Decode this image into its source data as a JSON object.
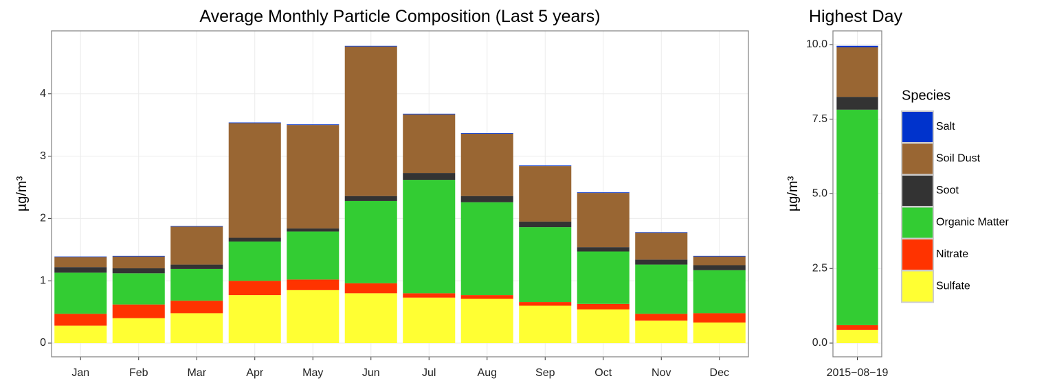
{
  "chart_data": [
    {
      "type": "stacked-bar",
      "title": "Average Monthly Particle Composition (Last 5 years)",
      "y_label": "µg/m³",
      "categories": [
        "Jan",
        "Feb",
        "Mar",
        "Apr",
        "May",
        "Jun",
        "Jul",
        "Aug",
        "Sep",
        "Oct",
        "Nov",
        "Dec"
      ],
      "series": [
        {
          "name": "Sulfate",
          "color": "#ffff33",
          "values": [
            0.28,
            0.4,
            0.48,
            0.77,
            0.85,
            0.8,
            0.73,
            0.71,
            0.6,
            0.54,
            0.36,
            0.33
          ]
        },
        {
          "name": "Nitrate",
          "color": "#ff3300",
          "values": [
            0.19,
            0.22,
            0.2,
            0.23,
            0.17,
            0.16,
            0.07,
            0.06,
            0.06,
            0.09,
            0.11,
            0.15
          ]
        },
        {
          "name": "Organic Matter",
          "color": "#33cc33",
          "values": [
            0.66,
            0.5,
            0.51,
            0.63,
            0.77,
            1.32,
            1.82,
            1.49,
            1.2,
            0.84,
            0.79,
            0.69
          ]
        },
        {
          "name": "Soot",
          "color": "#333333",
          "values": [
            0.09,
            0.08,
            0.07,
            0.06,
            0.05,
            0.08,
            0.11,
            0.1,
            0.09,
            0.07,
            0.08,
            0.08
          ]
        },
        {
          "name": "Soil Dust",
          "color": "#996633",
          "values": [
            0.16,
            0.19,
            0.61,
            1.84,
            1.66,
            2.4,
            0.94,
            1.0,
            0.89,
            0.87,
            0.43,
            0.14
          ]
        },
        {
          "name": "Salt",
          "color": "#0033cc",
          "values": [
            0.01,
            0.01,
            0.01,
            0.01,
            0.01,
            0.01,
            0.01,
            0.01,
            0.01,
            0.01,
            0.01,
            0.01
          ]
        }
      ],
      "ylim": [
        -0.22,
        5.01
      ],
      "yticks": [
        0,
        1,
        2,
        3,
        4
      ],
      "grid": true,
      "legend_title": "Species",
      "legend": "right"
    },
    {
      "type": "stacked-bar",
      "title": "Highest Day",
      "y_label": "µg/m³",
      "categories": [
        "2015−08−19"
      ],
      "series": [
        {
          "name": "Sulfate",
          "color": "#ffff33",
          "values": [
            0.44
          ]
        },
        {
          "name": "Nitrate",
          "color": "#ff3300",
          "values": [
            0.16
          ]
        },
        {
          "name": "Organic Matter",
          "color": "#33cc33",
          "values": [
            7.22
          ]
        },
        {
          "name": "Soot",
          "color": "#333333",
          "values": [
            0.43
          ]
        },
        {
          "name": "Soil Dust",
          "color": "#996633",
          "values": [
            1.66
          ]
        },
        {
          "name": "Salt",
          "color": "#0033cc",
          "values": [
            0.05
          ]
        }
      ],
      "ylim": [
        -0.46,
        10.46
      ],
      "yticks": [
        {
          "value": 0,
          "label": "0.0"
        },
        {
          "value": 2.5,
          "label": "2.5"
        },
        {
          "value": 5,
          "label": "5.0"
        },
        {
          "value": 7.5,
          "label": "7.5"
        },
        {
          "value": 10,
          "label": "10.0"
        }
      ],
      "grid": true
    }
  ]
}
